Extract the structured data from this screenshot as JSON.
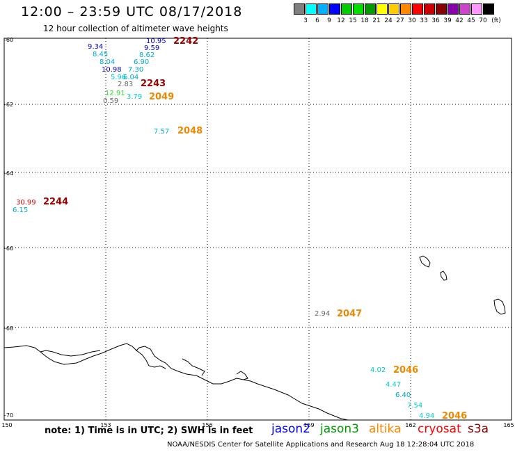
{
  "header": {
    "title": "12:00 – 23:59 UTC 08/17/2018",
    "subtitle": "12 hour collection of altimeter wave heights"
  },
  "scale": {
    "colors": [
      "#7f7f7f",
      "#00ffff",
      "#00b0ff",
      "#0000ff",
      "#00cc00",
      "#00dd00",
      "#009900",
      "#ffff00",
      "#ffcc00",
      "#ff8800",
      "#ff0000",
      "#cc0000",
      "#880000",
      "#8800aa",
      "#cc44cc",
      "#ff99ff",
      "#000000"
    ],
    "labels": [
      "3",
      "6",
      "9",
      "12",
      "15",
      "18",
      "21",
      "24",
      "27",
      "30",
      "33",
      "36",
      "39",
      "42",
      "45",
      "70"
    ],
    "unit": "(ft)"
  },
  "axes": {
    "lat_labels": [
      "-60",
      "-62",
      "-64",
      "-66",
      "-68",
      "-70"
    ],
    "lon_labels": [
      "150",
      "153",
      "156",
      "159",
      "162",
      "165"
    ]
  },
  "observations": [
    {
      "value": "10.95",
      "color": "#0000cc"
    },
    {
      "value": "9.59",
      "color": "#0000cc"
    },
    {
      "value": "9.34",
      "color": "#0000cc"
    },
    {
      "value": "8.62",
      "color": "#00aacc"
    },
    {
      "value": "8.45",
      "color": "#00aacc"
    },
    {
      "value": "6.90",
      "color": "#00aacc"
    },
    {
      "value": "8.04",
      "color": "#00aacc"
    },
    {
      "value": "10.98",
      "color": "#0000cc"
    },
    {
      "value": "7.30",
      "color": "#00aacc"
    },
    {
      "value": "5.96",
      "color": "#00cccc"
    },
    {
      "value": "6.04",
      "color": "#00aacc"
    },
    {
      "value": "2.83",
      "color": "#666666"
    },
    {
      "value": "12.91",
      "color": "#33dd33"
    },
    {
      "value": "3.79",
      "color": "#00cccc"
    },
    {
      "value": "0.59",
      "color": "#666666"
    },
    {
      "value": "7.57",
      "color": "#00aacc"
    },
    {
      "value": "30.99",
      "color": "#cc0000"
    },
    {
      "value": "6.15",
      "color": "#00aacc"
    },
    {
      "value": "2.94",
      "color": "#666666"
    },
    {
      "value": "4.02",
      "color": "#00cccc"
    },
    {
      "value": "4.47",
      "color": "#00cccc"
    },
    {
      "value": "6.40",
      "color": "#00aacc"
    },
    {
      "value": "7.54",
      "color": "#00cccc"
    },
    {
      "value": "4.94",
      "color": "#00cccc"
    }
  ],
  "time_labels": [
    {
      "value": "2242",
      "color": "#990000"
    },
    {
      "value": "2243",
      "color": "#990000"
    },
    {
      "value": "2049",
      "color": "#ee8800"
    },
    {
      "value": "2048",
      "color": "#ee8800"
    },
    {
      "value": "2244",
      "color": "#990000"
    },
    {
      "value": "2047",
      "color": "#ee8800"
    },
    {
      "value": "2046",
      "color": "#ee8800"
    },
    {
      "value": "2046",
      "color": "#ee8800"
    }
  ],
  "footer": {
    "note": "note: 1) Time is in UTC; 2) SWH is in feet",
    "legend": [
      {
        "label": "jason2",
        "color": "#0000ff"
      },
      {
        "label": "jason3",
        "color": "#009900"
      },
      {
        "label": "altika",
        "color": "#ff8800"
      },
      {
        "label": "cryosat",
        "color": "#ff0000"
      },
      {
        "label": "s3a",
        "color": "#880000"
      }
    ],
    "credit": "NOAA/NESDIS Center for Satellite Applications and Research    Aug 18 12:28:04 UTC 2018"
  }
}
